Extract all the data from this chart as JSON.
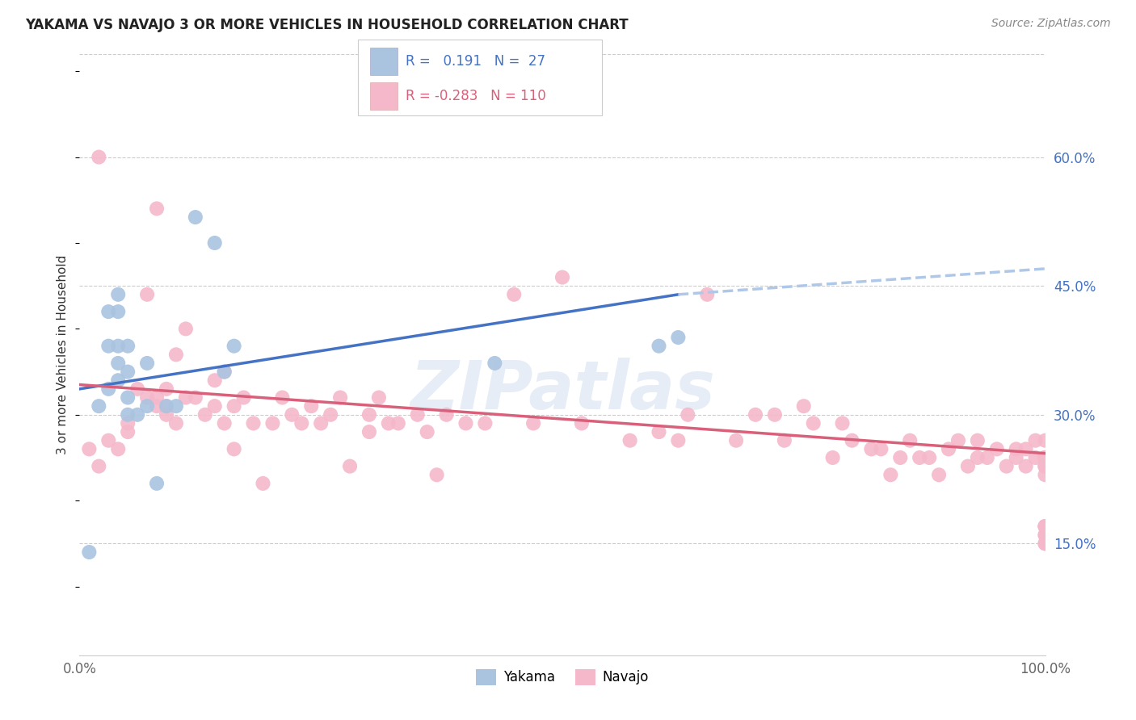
{
  "title": "YAKAMA VS NAVAJO 3 OR MORE VEHICLES IN HOUSEHOLD CORRELATION CHART",
  "source": "Source: ZipAtlas.com",
  "ylabel": "3 or more Vehicles in Household",
  "ytick_labels": [
    "15.0%",
    "30.0%",
    "45.0%",
    "60.0%"
  ],
  "ytick_values": [
    0.15,
    0.3,
    0.45,
    0.6
  ],
  "xlim": [
    0.0,
    1.0
  ],
  "ylim": [
    0.02,
    0.72
  ],
  "legend_labels": [
    "Yakama",
    "Navajo"
  ],
  "yakama_color": "#aac4e0",
  "navajo_color": "#f5b8cb",
  "yakama_line_color": "#4472c4",
  "navajo_line_color": "#d9607a",
  "trendline_extension_color": "#b0c8e8",
  "yakama_R": 0.191,
  "yakama_N": 27,
  "navajo_R": -0.283,
  "navajo_N": 110,
  "watermark": "ZIPatlas",
  "background_color": "#ffffff",
  "grid_color": "#cccccc",
  "yakama_x": [
    0.01,
    0.02,
    0.03,
    0.03,
    0.03,
    0.04,
    0.04,
    0.04,
    0.04,
    0.04,
    0.05,
    0.05,
    0.05,
    0.05,
    0.06,
    0.07,
    0.07,
    0.08,
    0.09,
    0.1,
    0.12,
    0.14,
    0.15,
    0.16,
    0.43,
    0.6,
    0.62
  ],
  "yakama_y": [
    0.14,
    0.31,
    0.33,
    0.38,
    0.42,
    0.34,
    0.36,
    0.38,
    0.42,
    0.44,
    0.3,
    0.32,
    0.35,
    0.38,
    0.3,
    0.31,
    0.36,
    0.22,
    0.31,
    0.31,
    0.53,
    0.5,
    0.35,
    0.38,
    0.36,
    0.38,
    0.39
  ],
  "navajo_x": [
    0.01,
    0.02,
    0.02,
    0.03,
    0.04,
    0.05,
    0.05,
    0.06,
    0.07,
    0.07,
    0.08,
    0.08,
    0.08,
    0.09,
    0.09,
    0.09,
    0.1,
    0.1,
    0.11,
    0.11,
    0.12,
    0.13,
    0.14,
    0.14,
    0.15,
    0.15,
    0.16,
    0.16,
    0.17,
    0.18,
    0.19,
    0.2,
    0.21,
    0.22,
    0.23,
    0.24,
    0.25,
    0.26,
    0.27,
    0.28,
    0.3,
    0.3,
    0.31,
    0.32,
    0.33,
    0.35,
    0.36,
    0.37,
    0.38,
    0.4,
    0.42,
    0.45,
    0.47,
    0.5,
    0.52,
    0.57,
    0.6,
    0.62,
    0.63,
    0.65,
    0.68,
    0.7,
    0.72,
    0.73,
    0.75,
    0.76,
    0.78,
    0.79,
    0.8,
    0.82,
    0.83,
    0.84,
    0.85,
    0.86,
    0.87,
    0.88,
    0.89,
    0.9,
    0.91,
    0.92,
    0.93,
    0.93,
    0.94,
    0.95,
    0.96,
    0.97,
    0.97,
    0.98,
    0.98,
    0.99,
    0.99,
    1.0,
    1.0,
    1.0,
    1.0,
    1.0,
    1.0,
    1.0,
    1.0,
    1.0,
    1.0,
    1.0,
    1.0,
    1.0,
    1.0,
    1.0,
    1.0,
    1.0,
    1.0,
    1.0
  ],
  "navajo_y": [
    0.26,
    0.24,
    0.6,
    0.27,
    0.26,
    0.28,
    0.29,
    0.33,
    0.32,
    0.44,
    0.31,
    0.32,
    0.54,
    0.3,
    0.31,
    0.33,
    0.29,
    0.37,
    0.32,
    0.4,
    0.32,
    0.3,
    0.31,
    0.34,
    0.29,
    0.35,
    0.26,
    0.31,
    0.32,
    0.29,
    0.22,
    0.29,
    0.32,
    0.3,
    0.29,
    0.31,
    0.29,
    0.3,
    0.32,
    0.24,
    0.28,
    0.3,
    0.32,
    0.29,
    0.29,
    0.3,
    0.28,
    0.23,
    0.3,
    0.29,
    0.29,
    0.44,
    0.29,
    0.46,
    0.29,
    0.27,
    0.28,
    0.27,
    0.3,
    0.44,
    0.27,
    0.3,
    0.3,
    0.27,
    0.31,
    0.29,
    0.25,
    0.29,
    0.27,
    0.26,
    0.26,
    0.23,
    0.25,
    0.27,
    0.25,
    0.25,
    0.23,
    0.26,
    0.27,
    0.24,
    0.25,
    0.27,
    0.25,
    0.26,
    0.24,
    0.26,
    0.25,
    0.24,
    0.26,
    0.27,
    0.25,
    0.17,
    0.23,
    0.24,
    0.25,
    0.17,
    0.24,
    0.25,
    0.25,
    0.17,
    0.24,
    0.15,
    0.25,
    0.15,
    0.16,
    0.16,
    0.25,
    0.25,
    0.25,
    0.27
  ]
}
